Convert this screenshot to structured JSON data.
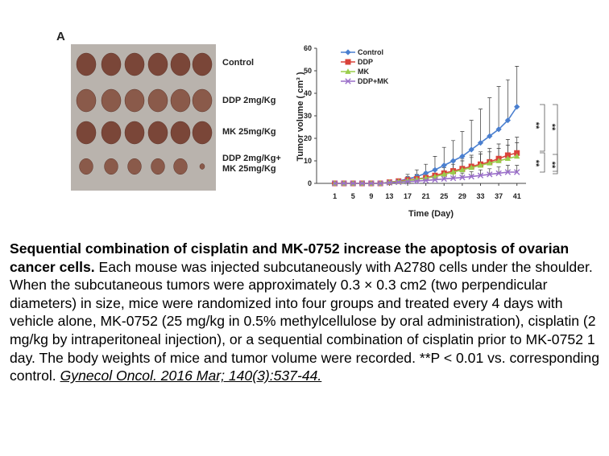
{
  "panel_label": "A",
  "photo": {
    "groups": [
      [
        "Control"
      ],
      [
        "DDP 2mg/Kg"
      ],
      [
        "MK 25mg/Kg"
      ],
      [
        "DDP 2mg/Kg+",
        "MK 25mg/Kg"
      ]
    ]
  },
  "chart_data": {
    "type": "line",
    "xlabel": "Time (Day)",
    "ylabel": "Tumor volume ( cm³ )",
    "x": [
      1,
      3,
      5,
      7,
      9,
      11,
      13,
      15,
      17,
      19,
      21,
      23,
      25,
      27,
      29,
      31,
      33,
      35,
      37,
      39,
      41
    ],
    "xlim": [
      -3,
      43
    ],
    "xticks": [
      1,
      5,
      9,
      13,
      17,
      21,
      25,
      29,
      33,
      37,
      41
    ],
    "ylim": [
      0,
      60
    ],
    "yticks": [
      0,
      10,
      20,
      30,
      40,
      50,
      60
    ],
    "legend": "upper left",
    "series": [
      {
        "name": "Control",
        "color": "#4a7fcf",
        "marker": "diamond",
        "values": [
          0,
          0,
          0,
          0,
          0,
          0,
          0.5,
          1,
          2,
          3,
          4.5,
          6,
          8,
          10,
          12,
          15,
          18,
          21,
          24,
          28,
          34
        ],
        "errors": [
          0,
          0,
          0,
          0,
          0,
          0,
          0.5,
          1,
          2,
          3,
          4,
          6,
          8,
          9,
          11,
          13,
          15,
          17,
          19,
          18,
          18
        ]
      },
      {
        "name": "DDP",
        "color": "#d9433a",
        "marker": "square",
        "values": [
          0,
          0,
          0,
          0,
          0,
          0,
          0.5,
          1,
          1.5,
          2,
          2.5,
          3.5,
          4.5,
          5.5,
          6.5,
          7.5,
          8.5,
          9.5,
          11,
          12.5,
          13.5
        ],
        "errors": [
          0,
          0,
          0,
          0,
          0,
          0,
          0.5,
          1,
          1.5,
          2,
          2.5,
          3,
          3.5,
          4,
          4.5,
          5,
          5.5,
          6,
          6.5,
          7,
          7
        ]
      },
      {
        "name": "MK",
        "color": "#9acd4c",
        "marker": "triangle",
        "values": [
          0,
          0,
          0,
          0,
          0,
          0,
          0.5,
          0.8,
          1.2,
          1.8,
          2.3,
          3,
          4,
          5,
          6,
          7,
          8,
          9,
          10,
          11,
          12
        ],
        "errors": [
          0,
          0,
          0,
          0,
          0,
          0,
          0.5,
          1,
          1.5,
          2,
          2.5,
          3,
          3,
          3.5,
          4,
          4.5,
          5,
          5,
          5.5,
          6,
          6
        ]
      },
      {
        "name": "DDP+MK",
        "color": "#9a6fc9",
        "marker": "cross",
        "values": [
          0,
          0,
          0,
          0,
          0,
          0,
          0.3,
          0.5,
          0.8,
          1,
          1.3,
          1.6,
          2,
          2.3,
          2.6,
          3,
          3.5,
          4,
          4.5,
          5,
          5
        ],
        "errors": [
          0,
          0,
          0,
          0,
          0,
          0,
          0.3,
          0.5,
          0.8,
          1,
          1.2,
          1.5,
          1.8,
          2,
          2,
          2.2,
          2.5,
          2.5,
          2.8,
          3,
          3
        ]
      }
    ],
    "annotations": [
      "**",
      "**",
      "**",
      "**"
    ]
  },
  "caption": {
    "bold": "Sequential combination of cisplatin and MK-0752 increase the apoptosis of ovarian cancer cells.",
    "text": "Each mouse was injected subcutaneously with A2780 cells under the shoulder. When the subcutaneous tumors were approximately 0.3 × 0.3 cm2 (two perpendicular diameters) in size, mice were randomized into four groups and treated every 4 days with vehicle alone, MK-0752 (25 mg/kg in 0.5% methylcellulose by oral administration), cisplatin (2 mg/kg by intraperitoneal injection), or a sequential combination of cisplatin prior to MK-0752 1 day. The body weights of mice and tumor volume were recorded. **P < 0.01 vs. corresponding control.",
    "citation": "Gynecol Oncol. 2016 Mar; 140(3):537-44."
  }
}
